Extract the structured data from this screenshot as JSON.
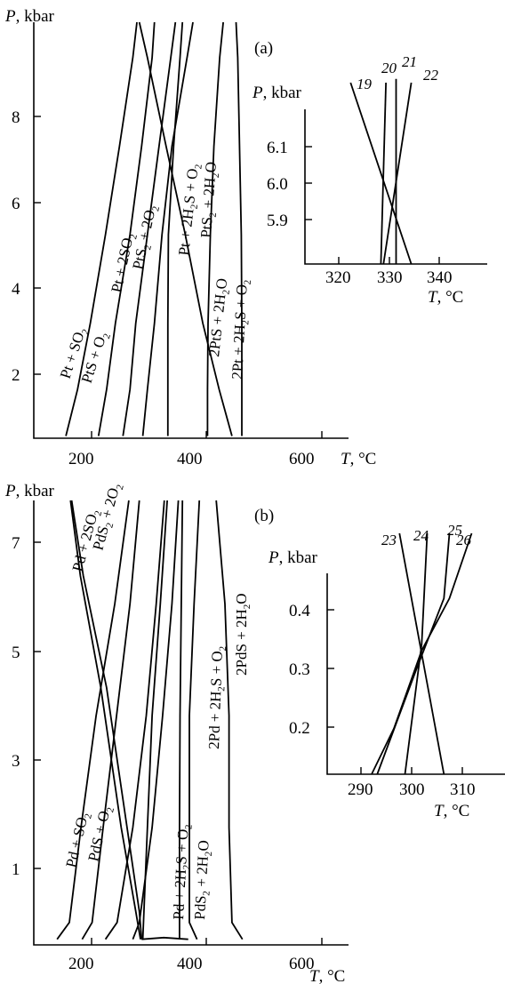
{
  "chart_data": [
    {
      "id": "a-main",
      "type": "line",
      "panel_label": "(a)",
      "xlabel": "T, °C",
      "ylabel": "P, kbar",
      "xlim": [
        115,
        655
      ],
      "ylim": [
        0.4,
        9.8
      ],
      "xticks": [
        200,
        400,
        600
      ],
      "yticks": [
        2,
        4,
        6,
        8
      ],
      "series": [
        {
          "name": "Pt + SO2",
          "points": [
            [
              170,
              0.45
            ],
            [
              190,
              1.5
            ],
            [
              212,
              3.0
            ],
            [
              238,
              5.0
            ],
            [
              262,
              7.0
            ],
            [
              285,
              9.0
            ],
            [
              292,
              9.8
            ]
          ]
        },
        {
          "name": "PtS + O2",
          "points": [
            [
              226,
              0.45
            ],
            [
              240,
              1.5
            ],
            [
              255,
              3.0
            ],
            [
              280,
              5.0
            ],
            [
              300,
              7.0
            ],
            [
              318,
              9.0
            ],
            [
              322,
              9.8
            ]
          ]
        },
        {
          "name": "Pt + 2SO2",
          "points": [
            [
              268,
              0.45
            ],
            [
              280,
              1.5
            ],
            [
              290,
              3.0
            ],
            [
              310,
              5.0
            ],
            [
              330,
              7.0
            ],
            [
              350,
              9.0
            ],
            [
              358,
              9.8
            ]
          ]
        },
        {
          "name": "PtS2 + 2O2",
          "points": [
            [
              302,
              0.45
            ],
            [
              310,
              1.5
            ],
            [
              322,
              3.0
            ],
            [
              335,
              5.0
            ],
            [
              352,
              7.0
            ],
            [
              378,
              9.0
            ],
            [
              388,
              9.8
            ]
          ]
        },
        {
          "name": "Pt + 2H2S + O2",
          "points": [
            [
              345,
              0.45
            ],
            [
              345,
              1.5
            ],
            [
              345,
              3.0
            ],
            [
              346,
              5.0
            ],
            [
              355,
              7.0
            ],
            [
              366,
              9.0
            ],
            [
              370,
              9.8
            ]
          ]
        },
        {
          "name": "PtS2 + 2H2O",
          "points": [
            [
              413,
              0.45
            ],
            [
              413,
              1.5
            ],
            [
              414,
              3.0
            ],
            [
              418,
              5.0
            ],
            [
              424,
              7.0
            ],
            [
              434,
              9.0
            ],
            [
              440,
              9.8
            ]
          ]
        },
        {
          "name": "2PtS + 2H2O",
          "points": [
            [
              455,
              0.45
            ],
            [
              433,
              1.5
            ],
            [
              405,
              3.0
            ],
            [
              375,
              5.0
            ],
            [
              342,
              7.0
            ],
            [
              310,
              9.0
            ],
            [
              296,
              9.8
            ]
          ]
        },
        {
          "name": "2Pt + 2H2S + O2",
          "points": [
            [
              472,
              0.45
            ],
            [
              472,
              1.5
            ],
            [
              472,
              3.0
            ],
            [
              471,
              5.0
            ],
            [
              468,
              7.0
            ],
            [
              465,
              9.0
            ],
            [
              462,
              9.8
            ]
          ]
        }
      ]
    },
    {
      "id": "a-inset",
      "type": "line",
      "xlabel": "T, °C",
      "ylabel": "P, kbar",
      "xlim": [
        313,
        349
      ],
      "ylim": [
        5.82,
        6.32
      ],
      "xticks": [
        320,
        330,
        340
      ],
      "yticks": [
        5.9,
        6.0,
        6.1
      ],
      "series": [
        {
          "name": "19",
          "points": [
            [
              334,
              5.82
            ],
            [
              322,
              6.29
            ]
          ]
        },
        {
          "name": "20",
          "points": [
            [
              328,
              5.82
            ],
            [
              329,
              6.29
            ]
          ]
        },
        {
          "name": "21",
          "points": [
            [
              331,
              5.82
            ],
            [
              331,
              6.3
            ]
          ]
        },
        {
          "name": "22",
          "points": [
            [
              328.5,
              5.82
            ],
            [
              334,
              6.29
            ]
          ]
        }
      ]
    },
    {
      "id": "b-main",
      "type": "line",
      "panel_label": "(b)",
      "xlabel": "T, °C",
      "ylabel": "P, kbar",
      "xlim": [
        115,
        655
      ],
      "ylim": [
        -0.1,
        7.85
      ],
      "xticks": [
        200,
        400,
        600
      ],
      "yticks": [
        1,
        3,
        5,
        7
      ],
      "series": [
        {
          "name": "Pd + 2SO2",
          "points": [
            [
              180,
              7.85
            ],
            [
              200,
              6.5
            ],
            [
              240,
              4.5
            ],
            [
              275,
              2.0
            ],
            [
              296,
              0.5
            ],
            [
              300,
              0.0
            ]
          ]
        },
        {
          "name": "PdS2 + 2O2",
          "points": [
            [
              178,
              7.85
            ],
            [
              195,
              6.5
            ],
            [
              230,
              4.5
            ],
            [
              265,
              2.0
            ],
            [
              290,
              0.5
            ],
            [
              298,
              0.0
            ]
          ]
        },
        {
          "name": "Pd + SO2",
          "points": [
            [
              155,
              0.0
            ],
            [
              176,
              0.3
            ],
            [
              196,
              2.0
            ],
            [
              222,
              4.0
            ],
            [
              254,
              6.0
            ],
            [
              278,
              7.85
            ]
          ]
        },
        {
          "name": "PdS + O2",
          "points": [
            [
              198,
              0.0
            ],
            [
              215,
              0.3
            ],
            [
              234,
              2.0
            ],
            [
              257,
              4.0
            ],
            [
              280,
              6.0
            ],
            [
              296,
              7.85
            ]
          ]
        },
        {
          "name": "c3",
          "points": [
            [
              238,
              0.0
            ],
            [
              258,
              0.3
            ],
            [
              285,
              2.0
            ],
            [
              308,
              4.0
            ],
            [
              325,
              6.0
            ],
            [
              339,
              7.85
            ]
          ]
        },
        {
          "name": "c4",
          "points": [
            [
              285,
              0.0
            ],
            [
              296,
              0.3
            ],
            [
              318,
              2.0
            ],
            [
              336,
              4.0
            ],
            [
              352,
              6.0
            ],
            [
              363,
              7.85
            ]
          ]
        },
        {
          "name": "c5",
          "points": [
            [
              302,
              0.0
            ],
            [
              304,
              0.5
            ],
            [
              310,
              2.0
            ],
            [
              318,
              4.0
            ],
            [
              332,
              6.0
            ],
            [
              344,
              7.85
            ]
          ]
        },
        {
          "name": "Pd + 2H2S + O2",
          "points": [
            [
              365,
              0.0
            ],
            [
              365,
              0.5
            ],
            [
              365,
              2.0
            ],
            [
              366,
              4.0
            ],
            [
              368,
              6.0
            ],
            [
              370,
              7.85
            ]
          ]
        },
        {
          "name": "PdS2 + 2H2O",
          "points": [
            [
              395,
              0.0
            ],
            [
              382,
              0.3
            ],
            [
              382,
              2.0
            ],
            [
              382,
              4.0
            ],
            [
              390,
              6.0
            ],
            [
              399,
              7.85
            ]
          ]
        },
        {
          "name": "2Pd + 2H2S + O2",
          "points": [
            [
              473,
              0.0
            ],
            [
              455,
              0.3
            ],
            [
              450,
              2.0
            ],
            [
              450,
              4.0
            ],
            [
              443,
              6.0
            ],
            [
              428,
              7.85
            ]
          ]
        },
        {
          "name": "2PdS + 2H2O",
          "points": [
            [
              300,
              0.0
            ],
            [
              338,
              0.03
            ],
            [
              380,
              0.0
            ]
          ]
        }
      ]
    },
    {
      "id": "b-inset",
      "type": "line",
      "xlabel": "T, °C",
      "ylabel": "P, kbar",
      "xlim": [
        283,
        315
      ],
      "ylim": [
        0.09,
        0.46
      ],
      "xticks": [
        290,
        300,
        310
      ],
      "yticks": [
        0.2,
        0.3,
        0.4
      ],
      "series": [
        {
          "name": "23",
          "points": [
            [
              304,
              0.09
            ],
            [
              296,
              0.46
            ]
          ]
        },
        {
          "name": "24",
          "points": [
            [
              297,
              0.09
            ],
            [
              300,
              0.29
            ],
            [
              301,
              0.46
            ]
          ]
        },
        {
          "name": "25",
          "points": [
            [
              292,
              0.09
            ],
            [
              299,
              0.25
            ],
            [
              304,
              0.36
            ],
            [
              305,
              0.46
            ]
          ]
        },
        {
          "name": "26",
          "points": [
            [
              291,
              0.09
            ],
            [
              295,
              0.16
            ],
            [
              300,
              0.28
            ],
            [
              305,
              0.36
            ],
            [
              309,
              0.46
            ]
          ]
        }
      ]
    }
  ],
  "labels": {
    "a": {
      "panel": "(a)",
      "ylabel": "P, kbar",
      "xlabel": "T, °C",
      "xt": [
        "200",
        "400",
        "600"
      ],
      "yt": [
        "2",
        "4",
        "6",
        "8"
      ],
      "curves": [
        "Pt + SO2",
        "PtS + O2",
        "Pt + 2SO2",
        "PtS2 + 2O2",
        "Pt + 2H2S + O2",
        "PtS2 + 2H2O",
        "2PtS + 2H2O",
        "2Pt + 2H2S + O2"
      ],
      "inset": {
        "ylabel": "P, kbar",
        "xlabel": "T, °C",
        "xt": [
          "320",
          "330",
          "340"
        ],
        "yt": [
          "6.1",
          "6.0",
          "5.9"
        ],
        "nums": [
          "19",
          "20",
          "21",
          "22"
        ]
      }
    },
    "b": {
      "panel": "(b)",
      "ylabel": "P, kbar",
      "xlabel": "T, °C",
      "xt": [
        "200",
        "400",
        "600"
      ],
      "yt": [
        "7",
        "5",
        "3",
        "1"
      ],
      "curves": [
        "Pd + 2SO2",
        "PdS2 + 2O2",
        "Pd + SO2",
        "PdS + O2",
        "Pd + 2H2S + O2",
        "PdS2 + 2H2O",
        "2Pd + 2H2S + O2",
        "2PdS + 2H2O"
      ],
      "inset": {
        "ylabel": "P, kbar",
        "xlabel": "T, °C",
        "xt": [
          "290",
          "300",
          "310"
        ],
        "yt": [
          "0.4",
          "0.3",
          "0.2"
        ],
        "nums": [
          "23",
          "24",
          "25",
          "26"
        ]
      }
    }
  }
}
